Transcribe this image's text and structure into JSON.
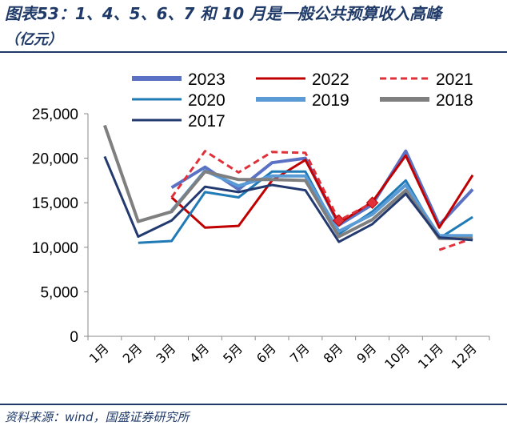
{
  "title": "图表53：1、4、5、6、7 和 10 月是一般公共预算收入高峰",
  "unit": "（亿元）",
  "source": "资料来源：wind，国盛证券研究所",
  "chart_data": {
    "type": "line",
    "categories": [
      "1月",
      "2月",
      "3月",
      "4月",
      "5月",
      "6月",
      "7月",
      "8月",
      "9月",
      "10月",
      "11月",
      "12月"
    ],
    "ylim": [
      0,
      25000
    ],
    "yticks": [
      "0",
      "5,000",
      "10,000",
      "15,000",
      "20,000",
      "25,000"
    ],
    "ytick_values": [
      0,
      5000,
      10000,
      15000,
      20000,
      25000
    ],
    "legend_placement": "top",
    "series": [
      {
        "name": "2023",
        "color": "#5b72c4",
        "dash": "",
        "values": [
          null,
          null,
          16700,
          19000,
          16500,
          19500,
          20000,
          12500,
          14800,
          20800,
          12500,
          16500
        ]
      },
      {
        "name": "2022",
        "color": "#c00000",
        "dash": "",
        "values": [
          null,
          null,
          15600,
          12200,
          12400,
          17500,
          19800,
          12700,
          15100,
          20300,
          12200,
          18100
        ]
      },
      {
        "name": "2021",
        "color": "#e0313a",
        "dash": "8,5",
        "values": [
          null,
          null,
          15600,
          20800,
          18400,
          20700,
          20600,
          13000,
          15000,
          null,
          9700,
          11000
        ]
      },
      {
        "name": "2020",
        "color": "#1f7ab6",
        "dash": "",
        "values": [
          null,
          10500,
          10700,
          16200,
          15600,
          18500,
          18500,
          11500,
          14000,
          17500,
          11000,
          13400
        ]
      },
      {
        "name": "2019",
        "color": "#5b9bd5",
        "dash": "",
        "values": [
          null,
          null,
          14100,
          18600,
          16900,
          18000,
          18000,
          11800,
          13700,
          17000,
          11300,
          11300
        ]
      },
      {
        "name": "2018",
        "color": "#7f7f7f",
        "dash": "",
        "values": [
          23700,
          12900,
          14000,
          18500,
          17600,
          17600,
          17500,
          11200,
          13100,
          16400,
          11000,
          11000
        ]
      },
      {
        "name": "2017",
        "color": "#223a70",
        "dash": "",
        "values": [
          20200,
          11200,
          13000,
          16800,
          16200,
          17000,
          16400,
          10600,
          12600,
          16000,
          11100,
          10800
        ]
      }
    ],
    "markers": [
      {
        "series": "2021",
        "month": "8月",
        "value": 13000
      },
      {
        "series": "2021",
        "month": "9月",
        "value": 15000
      }
    ]
  }
}
